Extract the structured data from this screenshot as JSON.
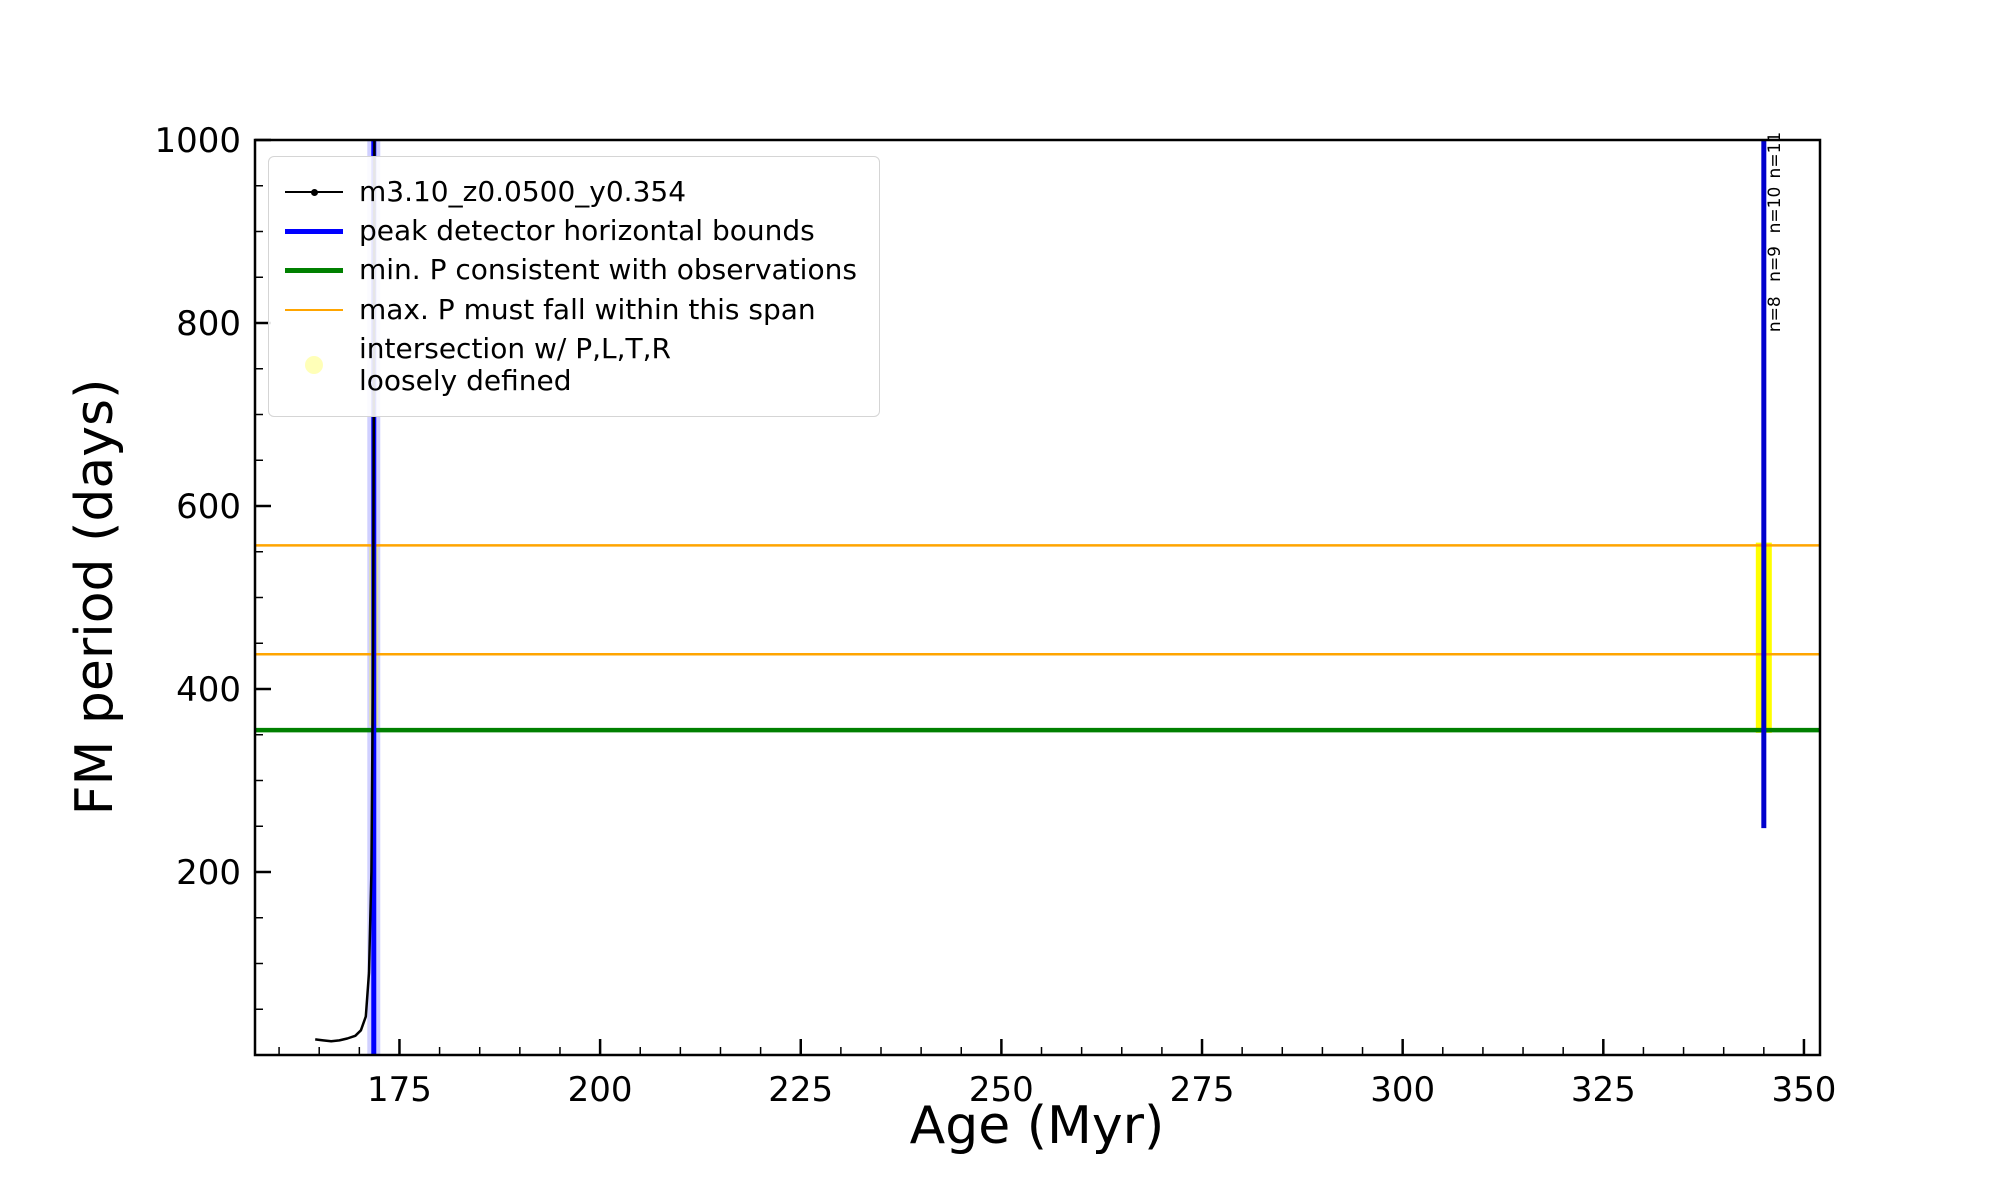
{
  "figure": {
    "background": "#ffffff"
  },
  "chart_data": {
    "type": "line",
    "title": "",
    "xlabel": "Age (Myr)",
    "ylabel": "FM period (days)",
    "xlim": [
      157,
      352
    ],
    "ylim": [
      0,
      1000
    ],
    "grid": false,
    "legend_position": "upper left",
    "x_major_ticks": [
      175,
      200,
      225,
      250,
      275,
      300,
      325,
      350
    ],
    "x_minor_step": 5,
    "y_major_ticks": [
      200,
      400,
      600,
      800,
      1000
    ],
    "y_minor_step": 50,
    "series": [
      {
        "name": "m3.10_z0.0500_y0.354",
        "color": "#000000",
        "linewidth": 2.5,
        "points": [
          [
            164.5,
            17
          ],
          [
            165.5,
            16
          ],
          [
            166.5,
            15
          ],
          [
            167.5,
            16
          ],
          [
            168.5,
            18
          ],
          [
            169.5,
            21
          ],
          [
            170.2,
            27
          ],
          [
            170.8,
            42
          ],
          [
            171.2,
            90
          ],
          [
            171.5,
            200
          ],
          [
            171.7,
            430
          ],
          [
            171.8,
            700
          ],
          [
            171.88,
            1000
          ]
        ]
      }
    ],
    "vlines": [
      {
        "label": "peak detector horizontal bounds",
        "x": 171.8,
        "y0": 0,
        "y1": 1000,
        "color": "#0000ff",
        "width": 5,
        "halo": true
      },
      {
        "label": "peak detector horizontal bounds",
        "x": 345.0,
        "y0": 248,
        "y1": 1000,
        "color": "#0000cd",
        "width": 5,
        "halo": false
      }
    ],
    "hlines": [
      {
        "label": "min. P consistent with observations",
        "y": 355,
        "color": "#008000",
        "width": 4.5
      },
      {
        "label": "max. P must fall within this span",
        "y": 438,
        "color": "#ffa500",
        "width": 2.5
      },
      {
        "label": "max. P must fall within this span",
        "y": 557,
        "color": "#ffa500",
        "width": 2.5
      }
    ],
    "intersection_bands": [
      {
        "x": 345.0,
        "y0": 352,
        "y1": 560,
        "width": 16,
        "color": "#ffff00",
        "opacity": 1
      },
      {
        "x": 171.8,
        "y0": 360,
        "y1": 556,
        "width": 9,
        "color": "#ffff00",
        "opacity": 0.35
      }
    ],
    "annotations": [
      {
        "text": "n=8",
        "x": 345.0,
        "y": 790,
        "rotation": -90
      },
      {
        "text": "n=9",
        "x": 345.0,
        "y": 845,
        "rotation": -90
      },
      {
        "text": "n=10",
        "x": 345.0,
        "y": 898,
        "rotation": -90
      },
      {
        "text": "n=11",
        "x": 345.0,
        "y": 958,
        "rotation": -90
      }
    ],
    "legend": {
      "entries": [
        {
          "label": "m3.10_z0.0500_y0.354",
          "swatch": "line-marker",
          "color": "#000000"
        },
        {
          "label": "peak detector horizontal bounds",
          "swatch": "thick-line",
          "color": "#0000ff"
        },
        {
          "label": "min. P consistent with observations",
          "swatch": "thick-line",
          "color": "#008000"
        },
        {
          "label": "max. P must fall within this span",
          "swatch": "line",
          "color": "#ffa500"
        },
        {
          "label": "intersection w/ P,L,T,R\nloosely defined",
          "swatch": "dot",
          "color": "#ffffb8"
        }
      ]
    }
  }
}
